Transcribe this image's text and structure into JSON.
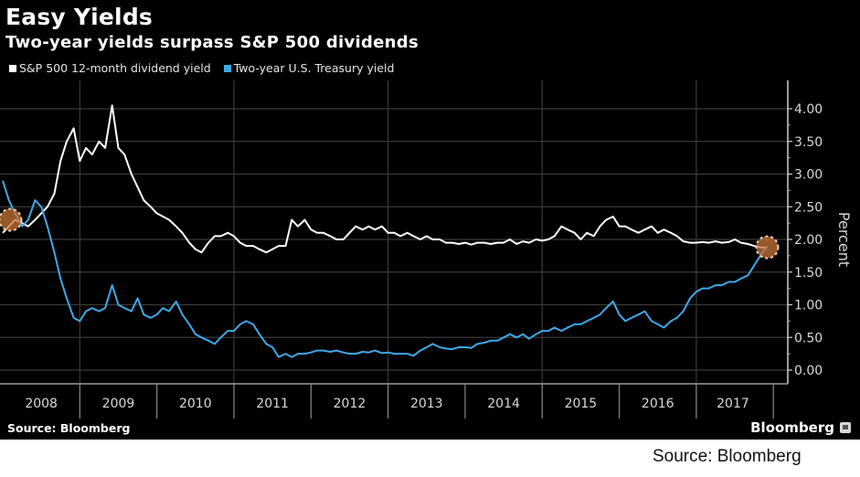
{
  "chart_data": {
    "type": "line",
    "title": "Easy Yields",
    "subtitle": "Two-year yields surpass S&P 500 dividends",
    "xlabel": "",
    "ylabel": "Percent",
    "ylim": [
      0,
      4.25
    ],
    "yticks": [
      "0.00",
      "0.50",
      "1.00",
      "1.50",
      "2.00",
      "2.50",
      "3.00",
      "3.50",
      "4.00"
    ],
    "ytick_values": [
      0,
      0.5,
      1.0,
      1.5,
      2.0,
      2.5,
      3.0,
      3.5,
      4.0
    ],
    "xticks": [
      "2008",
      "2009",
      "2010",
      "2011",
      "2012",
      "2013",
      "2014",
      "2015",
      "2016",
      "2017"
    ],
    "xlim": [
      2008.0,
      2017.95
    ],
    "grid": true,
    "legend_position": "top-left",
    "y_axis_side": "right",
    "x": [
      2008.0,
      2008.08,
      2008.16,
      2008.25,
      2008.33,
      2008.42,
      2008.5,
      2008.58,
      2008.67,
      2008.75,
      2008.83,
      2008.92,
      2009.0,
      2009.08,
      2009.16,
      2009.25,
      2009.33,
      2009.42,
      2009.5,
      2009.58,
      2009.67,
      2009.75,
      2009.83,
      2009.92,
      2010.0,
      2010.08,
      2010.16,
      2010.25,
      2010.33,
      2010.42,
      2010.5,
      2010.58,
      2010.67,
      2010.75,
      2010.83,
      2010.92,
      2011.0,
      2011.08,
      2011.16,
      2011.25,
      2011.33,
      2011.42,
      2011.5,
      2011.58,
      2011.67,
      2011.75,
      2011.83,
      2011.92,
      2012.0,
      2012.08,
      2012.16,
      2012.25,
      2012.33,
      2012.42,
      2012.5,
      2012.58,
      2012.67,
      2012.75,
      2012.83,
      2012.92,
      2013.0,
      2013.08,
      2013.16,
      2013.25,
      2013.33,
      2013.42,
      2013.5,
      2013.58,
      2013.67,
      2013.75,
      2013.83,
      2013.92,
      2014.0,
      2014.08,
      2014.16,
      2014.25,
      2014.33,
      2014.42,
      2014.5,
      2014.58,
      2014.67,
      2014.75,
      2014.83,
      2014.92,
      2015.0,
      2015.08,
      2015.16,
      2015.25,
      2015.33,
      2015.42,
      2015.5,
      2015.58,
      2015.67,
      2015.75,
      2015.83,
      2015.92,
      2016.0,
      2016.08,
      2016.16,
      2016.25,
      2016.33,
      2016.42,
      2016.5,
      2016.58,
      2016.67,
      2016.75,
      2016.83,
      2016.92,
      2017.0,
      2017.08,
      2017.16,
      2017.25,
      2017.33,
      2017.42,
      2017.5,
      2017.58,
      2017.67,
      2017.75,
      2017.83,
      2017.92
    ],
    "series": [
      {
        "name": "S&P 500 12-month dividend yield",
        "color": "#ffffff",
        "values": [
          2.1,
          2.2,
          2.3,
          2.25,
          2.2,
          2.3,
          2.4,
          2.5,
          2.7,
          3.2,
          3.5,
          3.7,
          3.2,
          3.4,
          3.3,
          3.5,
          3.4,
          4.05,
          3.4,
          3.3,
          3.0,
          2.8,
          2.6,
          2.5,
          2.4,
          2.35,
          2.3,
          2.2,
          2.1,
          1.95,
          1.85,
          1.8,
          1.95,
          2.05,
          2.05,
          2.1,
          2.05,
          1.95,
          1.9,
          1.9,
          1.85,
          1.8,
          1.85,
          1.9,
          1.9,
          2.3,
          2.2,
          2.3,
          2.15,
          2.1,
          2.1,
          2.05,
          2.0,
          2.0,
          2.1,
          2.2,
          2.15,
          2.2,
          2.15,
          2.2,
          2.1,
          2.1,
          2.05,
          2.1,
          2.05,
          2.0,
          2.05,
          2.0,
          2.0,
          1.95,
          1.95,
          1.93,
          1.95,
          1.92,
          1.95,
          1.95,
          1.93,
          1.95,
          1.95,
          2.0,
          1.93,
          1.97,
          1.95,
          2.0,
          1.98,
          2.0,
          2.05,
          2.2,
          2.15,
          2.1,
          2.0,
          2.1,
          2.05,
          2.2,
          2.3,
          2.35,
          2.2,
          2.2,
          2.15,
          2.1,
          2.15,
          2.2,
          2.1,
          2.15,
          2.1,
          2.05,
          1.97,
          1.95,
          1.95,
          1.96,
          1.95,
          1.97,
          1.95,
          1.96,
          2.0,
          1.95,
          1.93,
          1.9,
          1.88,
          1.87
        ]
      },
      {
        "name": "Two-year U.S. Treasury yield",
        "color": "#3fa9e8",
        "values": [
          2.9,
          2.6,
          2.4,
          2.2,
          2.3,
          2.6,
          2.5,
          2.2,
          1.8,
          1.4,
          1.1,
          0.8,
          0.75,
          0.9,
          0.95,
          0.9,
          0.95,
          1.3,
          1.0,
          0.95,
          0.9,
          1.1,
          0.85,
          0.8,
          0.85,
          0.95,
          0.9,
          1.05,
          0.85,
          0.7,
          0.55,
          0.5,
          0.45,
          0.4,
          0.5,
          0.6,
          0.6,
          0.7,
          0.75,
          0.7,
          0.55,
          0.4,
          0.35,
          0.2,
          0.25,
          0.2,
          0.25,
          0.25,
          0.27,
          0.3,
          0.3,
          0.28,
          0.3,
          0.27,
          0.25,
          0.25,
          0.28,
          0.27,
          0.3,
          0.26,
          0.27,
          0.25,
          0.25,
          0.25,
          0.22,
          0.3,
          0.35,
          0.4,
          0.35,
          0.33,
          0.32,
          0.35,
          0.35,
          0.34,
          0.4,
          0.42,
          0.45,
          0.45,
          0.5,
          0.55,
          0.5,
          0.55,
          0.48,
          0.55,
          0.6,
          0.6,
          0.65,
          0.6,
          0.65,
          0.7,
          0.7,
          0.75,
          0.8,
          0.85,
          0.95,
          1.05,
          0.85,
          0.75,
          0.8,
          0.85,
          0.9,
          0.75,
          0.7,
          0.65,
          0.75,
          0.8,
          0.9,
          1.1,
          1.2,
          1.25,
          1.25,
          1.3,
          1.3,
          1.35,
          1.35,
          1.4,
          1.45,
          1.6,
          1.75,
          1.9
        ]
      }
    ],
    "annotations": [
      {
        "type": "circle-marker",
        "label": "crossover",
        "x": 2008.1,
        "y": 2.3,
        "color": "#c8743a"
      },
      {
        "type": "circle-marker",
        "label": "crossover",
        "x": 2017.92,
        "y": 1.88,
        "color": "#c8743a"
      }
    ]
  },
  "header": {
    "title": "Easy Yields",
    "subtitle": "Two-year yields surpass S&P 500 dividends"
  },
  "legend": [
    {
      "label": "S&P 500 12-month dividend yield",
      "color": "#ffffff"
    },
    {
      "label": "Two-year U.S. Treasury yield",
      "color": "#3fa9e8"
    }
  ],
  "footer": {
    "source_inside": "Source: Bloomberg",
    "brand": "Bloomberg",
    "source_outside": "Source: Bloomberg"
  }
}
